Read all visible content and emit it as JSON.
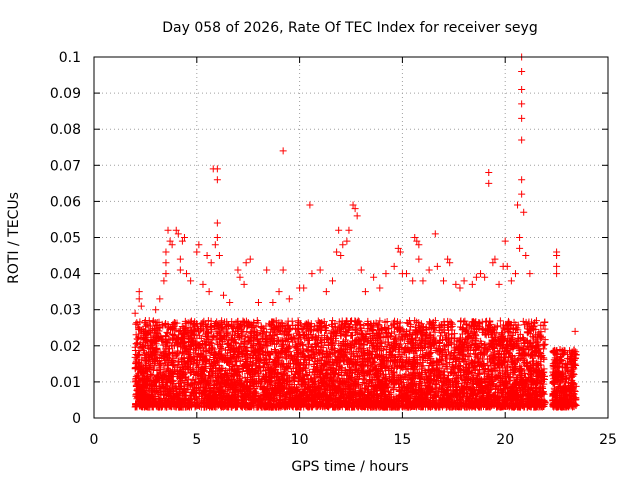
{
  "chart_data": {
    "type": "scatter",
    "title": "Day 058 of 2026, Rate Of TEC Index for receiver seyg",
    "xlabel": "GPS time / hours",
    "ylabel": "ROTI / TECUs",
    "xlim": [
      0,
      25
    ],
    "ylim": [
      0,
      0.1
    ],
    "x_ticks": [
      "0",
      "5",
      "10",
      "15",
      "20",
      "25"
    ],
    "y_ticks": [
      "0",
      "0.01",
      "0.02",
      "0.03",
      "0.04",
      "0.05",
      "0.06",
      "0.07",
      "0.08",
      "0.09",
      "0.1"
    ],
    "grid": true,
    "marker": "+",
    "color": "#ff0000",
    "series": [
      {
        "points": [
          [
            2.0,
            0.029
          ],
          [
            2.2,
            0.035
          ],
          [
            2.2,
            0.033
          ],
          [
            2.3,
            0.031
          ],
          [
            2.5,
            0.027
          ],
          [
            3.0,
            0.03
          ],
          [
            3.2,
            0.033
          ],
          [
            3.4,
            0.038
          ],
          [
            3.5,
            0.046
          ],
          [
            3.5,
            0.043
          ],
          [
            3.5,
            0.04
          ],
          [
            3.6,
            0.052
          ],
          [
            3.7,
            0.049
          ],
          [
            3.8,
            0.048
          ],
          [
            4.0,
            0.052
          ],
          [
            4.1,
            0.051
          ],
          [
            4.2,
            0.044
          ],
          [
            4.2,
            0.041
          ],
          [
            4.3,
            0.049
          ],
          [
            4.4,
            0.05
          ],
          [
            4.5,
            0.04
          ],
          [
            4.7,
            0.038
          ],
          [
            5.0,
            0.046
          ],
          [
            5.1,
            0.048
          ],
          [
            5.3,
            0.037
          ],
          [
            5.5,
            0.045
          ],
          [
            5.6,
            0.035
          ],
          [
            5.7,
            0.043
          ],
          [
            5.8,
            0.069
          ],
          [
            5.9,
            0.048
          ],
          [
            6.0,
            0.069
          ],
          [
            6.0,
            0.066
          ],
          [
            6.0,
            0.054
          ],
          [
            6.0,
            0.05
          ],
          [
            6.1,
            0.045
          ],
          [
            6.3,
            0.034
          ],
          [
            6.6,
            0.032
          ],
          [
            7.0,
            0.041
          ],
          [
            7.1,
            0.039
          ],
          [
            7.3,
            0.037
          ],
          [
            7.4,
            0.043
          ],
          [
            7.6,
            0.044
          ],
          [
            8.0,
            0.032
          ],
          [
            8.4,
            0.041
          ],
          [
            8.7,
            0.032
          ],
          [
            9.0,
            0.035
          ],
          [
            9.2,
            0.074
          ],
          [
            9.2,
            0.041
          ],
          [
            9.5,
            0.033
          ],
          [
            10.0,
            0.036
          ],
          [
            10.2,
            0.036
          ],
          [
            10.5,
            0.059
          ],
          [
            10.6,
            0.04
          ],
          [
            11.0,
            0.041
          ],
          [
            11.3,
            0.035
          ],
          [
            11.6,
            0.038
          ],
          [
            11.8,
            0.046
          ],
          [
            11.9,
            0.052
          ],
          [
            12.0,
            0.045
          ],
          [
            12.1,
            0.048
          ],
          [
            12.3,
            0.049
          ],
          [
            12.4,
            0.052
          ],
          [
            12.6,
            0.059
          ],
          [
            12.7,
            0.058
          ],
          [
            12.8,
            0.056
          ],
          [
            13.0,
            0.041
          ],
          [
            13.2,
            0.035
          ],
          [
            13.6,
            0.039
          ],
          [
            13.9,
            0.036
          ],
          [
            14.2,
            0.04
          ],
          [
            14.6,
            0.042
          ],
          [
            14.8,
            0.047
          ],
          [
            14.9,
            0.046
          ],
          [
            15.0,
            0.04
          ],
          [
            15.2,
            0.04
          ],
          [
            15.5,
            0.038
          ],
          [
            15.6,
            0.05
          ],
          [
            15.7,
            0.049
          ],
          [
            15.8,
            0.048
          ],
          [
            15.8,
            0.044
          ],
          [
            16.0,
            0.038
          ],
          [
            16.3,
            0.041
          ],
          [
            16.6,
            0.051
          ],
          [
            16.7,
            0.042
          ],
          [
            17.0,
            0.038
          ],
          [
            17.2,
            0.044
          ],
          [
            17.3,
            0.043
          ],
          [
            17.6,
            0.037
          ],
          [
            17.8,
            0.036
          ],
          [
            18.0,
            0.038
          ],
          [
            18.4,
            0.037
          ],
          [
            18.6,
            0.039
          ],
          [
            18.8,
            0.04
          ],
          [
            19.0,
            0.039
          ],
          [
            19.2,
            0.068
          ],
          [
            19.2,
            0.065
          ],
          [
            19.4,
            0.043
          ],
          [
            19.5,
            0.044
          ],
          [
            19.7,
            0.037
          ],
          [
            19.9,
            0.042
          ],
          [
            20.0,
            0.049
          ],
          [
            20.1,
            0.042
          ],
          [
            20.3,
            0.038
          ],
          [
            20.5,
            0.04
          ],
          [
            20.6,
            0.059
          ],
          [
            20.7,
            0.05
          ],
          [
            20.7,
            0.047
          ],
          [
            20.8,
            0.1
          ],
          [
            20.8,
            0.096
          ],
          [
            20.8,
            0.091
          ],
          [
            20.8,
            0.087
          ],
          [
            20.8,
            0.083
          ],
          [
            20.8,
            0.077
          ],
          [
            20.8,
            0.066
          ],
          [
            20.8,
            0.062
          ],
          [
            20.9,
            0.057
          ],
          [
            21.0,
            0.045
          ],
          [
            21.2,
            0.04
          ],
          [
            22.5,
            0.046
          ],
          [
            22.5,
            0.045
          ],
          [
            22.5,
            0.042
          ],
          [
            22.5,
            0.04
          ],
          [
            23.4,
            0.024
          ]
        ],
        "dense_clusters": [
          {
            "x_range": [
              2.0,
              21.95
            ],
            "y_range": [
              0.003,
              0.027
            ]
          },
          {
            "x_range": [
              22.3,
              23.45
            ],
            "y_range": [
              0.003,
              0.019
            ]
          }
        ]
      }
    ]
  }
}
